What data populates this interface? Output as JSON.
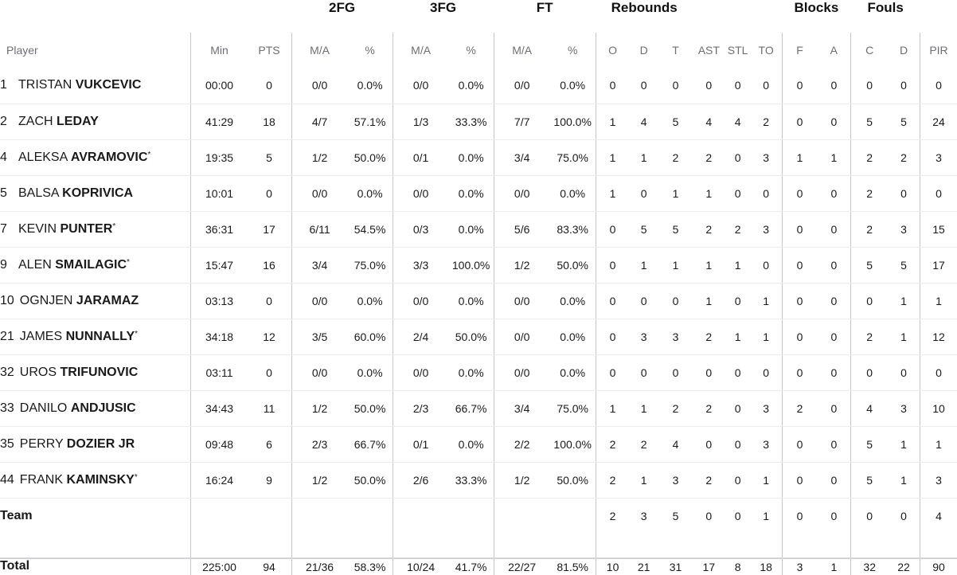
{
  "groups": {
    "fg2": "2FG",
    "fg3": "3FG",
    "ft": "FT",
    "rebounds": "Rebounds",
    "blocks": "Blocks",
    "fouls": "Fouls"
  },
  "columns": [
    "Player",
    "Min",
    "PTS",
    "M/A",
    "%",
    "M/A",
    "%",
    "M/A",
    "%",
    "O",
    "D",
    "T",
    "AST",
    "STL",
    "TO",
    "F",
    "A",
    "C",
    "D",
    "PIR"
  ],
  "players": [
    {
      "num": "1",
      "first": "TRISTAN",
      "last": "VUKCEVIC",
      "star": "",
      "stats": [
        "00:00",
        "0",
        "0/0",
        "0.0%",
        "0/0",
        "0.0%",
        "0/0",
        "0.0%",
        "0",
        "0",
        "0",
        "0",
        "0",
        "0",
        "0",
        "0",
        "0",
        "0",
        "0"
      ]
    },
    {
      "num": "2",
      "first": "ZACH",
      "last": "LEDAY",
      "star": "",
      "stats": [
        "41:29",
        "18",
        "4/7",
        "57.1%",
        "1/3",
        "33.3%",
        "7/7",
        "100.0%",
        "1",
        "4",
        "5",
        "4",
        "4",
        "2",
        "0",
        "0",
        "5",
        "5",
        "24"
      ]
    },
    {
      "num": "4",
      "first": "ALEKSA",
      "last": "AVRAMOVIC",
      "star": "*",
      "stats": [
        "19:35",
        "5",
        "1/2",
        "50.0%",
        "0/1",
        "0.0%",
        "3/4",
        "75.0%",
        "1",
        "1",
        "2",
        "2",
        "0",
        "3",
        "1",
        "1",
        "2",
        "2",
        "3"
      ]
    },
    {
      "num": "5",
      "first": "BALSA",
      "last": "KOPRIVICA",
      "star": "",
      "stats": [
        "10:01",
        "0",
        "0/0",
        "0.0%",
        "0/0",
        "0.0%",
        "0/0",
        "0.0%",
        "1",
        "0",
        "1",
        "1",
        "0",
        "0",
        "0",
        "0",
        "2",
        "0",
        "0"
      ]
    },
    {
      "num": "7",
      "first": "KEVIN",
      "last": "PUNTER",
      "star": "*",
      "stats": [
        "36:31",
        "17",
        "6/11",
        "54.5%",
        "0/3",
        "0.0%",
        "5/6",
        "83.3%",
        "0",
        "5",
        "5",
        "2",
        "2",
        "3",
        "0",
        "0",
        "2",
        "3",
        "15"
      ]
    },
    {
      "num": "9",
      "first": "ALEN",
      "last": "SMAILAGIC",
      "star": "*",
      "stats": [
        "15:47",
        "16",
        "3/4",
        "75.0%",
        "3/3",
        "100.0%",
        "1/2",
        "50.0%",
        "0",
        "1",
        "1",
        "1",
        "1",
        "0",
        "0",
        "0",
        "5",
        "5",
        "17"
      ]
    },
    {
      "num": "10",
      "first": "OGNJEN",
      "last": "JARAMAZ",
      "star": "",
      "stats": [
        "03:13",
        "0",
        "0/0",
        "0.0%",
        "0/0",
        "0.0%",
        "0/0",
        "0.0%",
        "0",
        "0",
        "0",
        "1",
        "0",
        "1",
        "0",
        "0",
        "0",
        "1",
        "1"
      ]
    },
    {
      "num": "21",
      "first": "JAMES",
      "last": "NUNNALLY",
      "star": "*",
      "stats": [
        "34:18",
        "12",
        "3/5",
        "60.0%",
        "2/4",
        "50.0%",
        "0/0",
        "0.0%",
        "0",
        "3",
        "3",
        "2",
        "1",
        "1",
        "0",
        "0",
        "2",
        "1",
        "12"
      ]
    },
    {
      "num": "32",
      "first": "UROS",
      "last": "TRIFUNOVIC",
      "star": "",
      "stats": [
        "03:11",
        "0",
        "0/0",
        "0.0%",
        "0/0",
        "0.0%",
        "0/0",
        "0.0%",
        "0",
        "0",
        "0",
        "0",
        "0",
        "0",
        "0",
        "0",
        "0",
        "0",
        "0"
      ]
    },
    {
      "num": "33",
      "first": "DANILO",
      "last": "ANDJUSIC",
      "star": "",
      "stats": [
        "34:43",
        "11",
        "1/2",
        "50.0%",
        "2/3",
        "66.7%",
        "3/4",
        "75.0%",
        "1",
        "1",
        "2",
        "2",
        "0",
        "3",
        "2",
        "0",
        "4",
        "3",
        "10"
      ]
    },
    {
      "num": "35",
      "first": "PERRY",
      "last": "DOZIER JR",
      "star": "",
      "stats": [
        "09:48",
        "6",
        "2/3",
        "66.7%",
        "0/1",
        "0.0%",
        "2/2",
        "100.0%",
        "2",
        "2",
        "4",
        "0",
        "0",
        "3",
        "0",
        "0",
        "5",
        "1",
        "1"
      ]
    },
    {
      "num": "44",
      "first": "FRANK",
      "last": "KAMINSKY",
      "star": "*",
      "stats": [
        "16:24",
        "9",
        "1/2",
        "50.0%",
        "2/6",
        "33.3%",
        "1/2",
        "50.0%",
        "2",
        "1",
        "3",
        "2",
        "0",
        "1",
        "0",
        "0",
        "5",
        "1",
        "3"
      ]
    }
  ],
  "team": {
    "label": "Team",
    "stats": [
      "",
      "",
      "",
      "",
      "",
      "",
      "",
      "",
      "2",
      "3",
      "5",
      "0",
      "0",
      "1",
      "0",
      "0",
      "0",
      "0",
      "4"
    ]
  },
  "total": {
    "label": "Total",
    "stats": [
      "225:00",
      "94",
      "21/36",
      "58.3%",
      "10/24",
      "41.7%",
      "22/27",
      "81.5%",
      "10",
      "21",
      "31",
      "17",
      "8",
      "18",
      "3",
      "1",
      "32",
      "22",
      "90"
    ]
  }
}
